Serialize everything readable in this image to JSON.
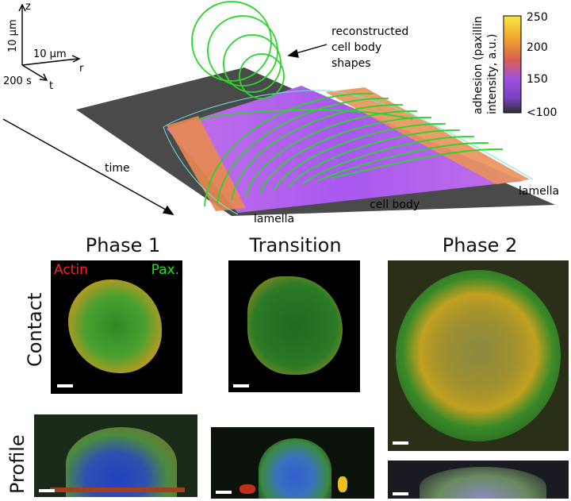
{
  "axes_3d": {
    "z": "z",
    "z_scale": "10 μm",
    "r_scale": "10 μm",
    "r": "r",
    "t_scale": "200 s",
    "t": "t"
  },
  "time_arrow_label": "time",
  "annotation": {
    "line1": "reconstructed",
    "line2": "cell body",
    "line3": "shapes"
  },
  "surface_labels": {
    "lamella_left": "lamella",
    "cell_body": "cell body",
    "lamella_right": "lamella"
  },
  "colorbar": {
    "label_line1": "adhesion (paxillin",
    "label_line2": "intensity, a.u.)",
    "ticks": [
      "250",
      "200",
      "150",
      "<100"
    ],
    "colors": [
      "#f8e840",
      "#f0a030",
      "#d86050",
      "#a050e0",
      "#7840c0",
      "#303030"
    ]
  },
  "phases": {
    "phase1": "Phase 1",
    "transition": "Transition",
    "phase2": "Phase 2"
  },
  "rows": {
    "contact": "Contact",
    "profile": "Profile"
  },
  "channels": {
    "actin": "Actin",
    "paxillin": "Pax.",
    "actin_color": "#ff2020",
    "paxillin_color": "#20e020"
  }
}
